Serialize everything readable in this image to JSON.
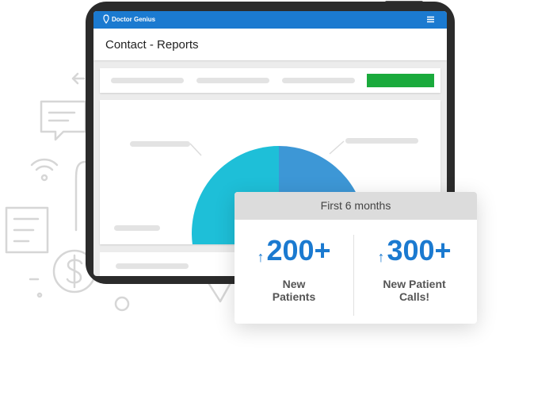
{
  "app": {
    "logo_text": "Doctor Genius",
    "logo_icon": "tooth-pin-icon",
    "menu_icon": "hamburger-menu-icon"
  },
  "page": {
    "title": "Contact - Reports"
  },
  "stats": {
    "header": "First 6 months",
    "items": [
      {
        "arrow": "↑",
        "value": "200+",
        "label": "New\nPatients"
      },
      {
        "arrow": "↑",
        "value": "300+",
        "label": "New Patient\nCalls!"
      }
    ]
  },
  "chart_data": {
    "type": "pie",
    "slices": [
      {
        "color": "#3d97d6",
        "start": 270,
        "end": 351
      },
      {
        "color": "#9e4aa1",
        "start": 351,
        "end": 408
      },
      {
        "color": "#ea8c20",
        "start": 408,
        "end": 424
      },
      {
        "color": "#d8d8d8",
        "start": 424,
        "end": 526
      },
      {
        "color": "#1ebfd8",
        "start": 526,
        "end": 630
      }
    ]
  },
  "colors": {
    "brand_blue": "#1b7ad0",
    "action_green": "#1aaa3c",
    "accent_purple": "#9e4aa1",
    "accent_orange": "#ea8c20",
    "accent_cyan": "#1ebfd8"
  }
}
